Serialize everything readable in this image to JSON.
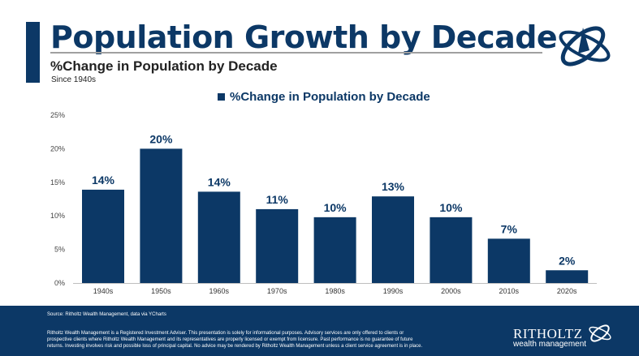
{
  "header": {
    "title": "Population Growth by Decade",
    "subtitle": "%Change in Population by Decade",
    "note": "Since 1940s"
  },
  "colors": {
    "brand": "#0c3866",
    "gridline": "#d9d9d9"
  },
  "chart_data": {
    "type": "bar",
    "legend": "%Change in Population by Decade",
    "legend_position": "top",
    "categories": [
      "1940s",
      "1950s",
      "1960s",
      "1970s",
      "1980s",
      "1990s",
      "2000s",
      "2010s",
      "2020s"
    ],
    "values": [
      13.9,
      20.0,
      13.6,
      11.0,
      9.8,
      12.9,
      9.8,
      6.6,
      1.9
    ],
    "data_labels": [
      "14%",
      "20%",
      "14%",
      "11%",
      "10%",
      "13%",
      "10%",
      "7%",
      "2%"
    ],
    "ylim": [
      0,
      25
    ],
    "yticks": [
      "0%",
      "5%",
      "10%",
      "15%",
      "20%",
      "25%"
    ],
    "grid": false
  },
  "footer": {
    "source": "Source: Ritholtz Wealth Management, data  via YCharts",
    "disclaimer": "Ritholtz Wealth Management is a Registered Investment Adviser. This presentation is solely for informational purposes. Advisory services are only offered to clients or prospective clients where Ritholtz Wealth Management and its representatives are properly licensed or exempt from licensure. Past performance is no guarantee of future returns. Investing involves risk and possible loss of principal capital. No advice may be rendered by Ritholtz Wealth Management unless a client service agreement is in place.",
    "brand_name": "RITHOLTZ",
    "brand_sub": "wealth management"
  }
}
